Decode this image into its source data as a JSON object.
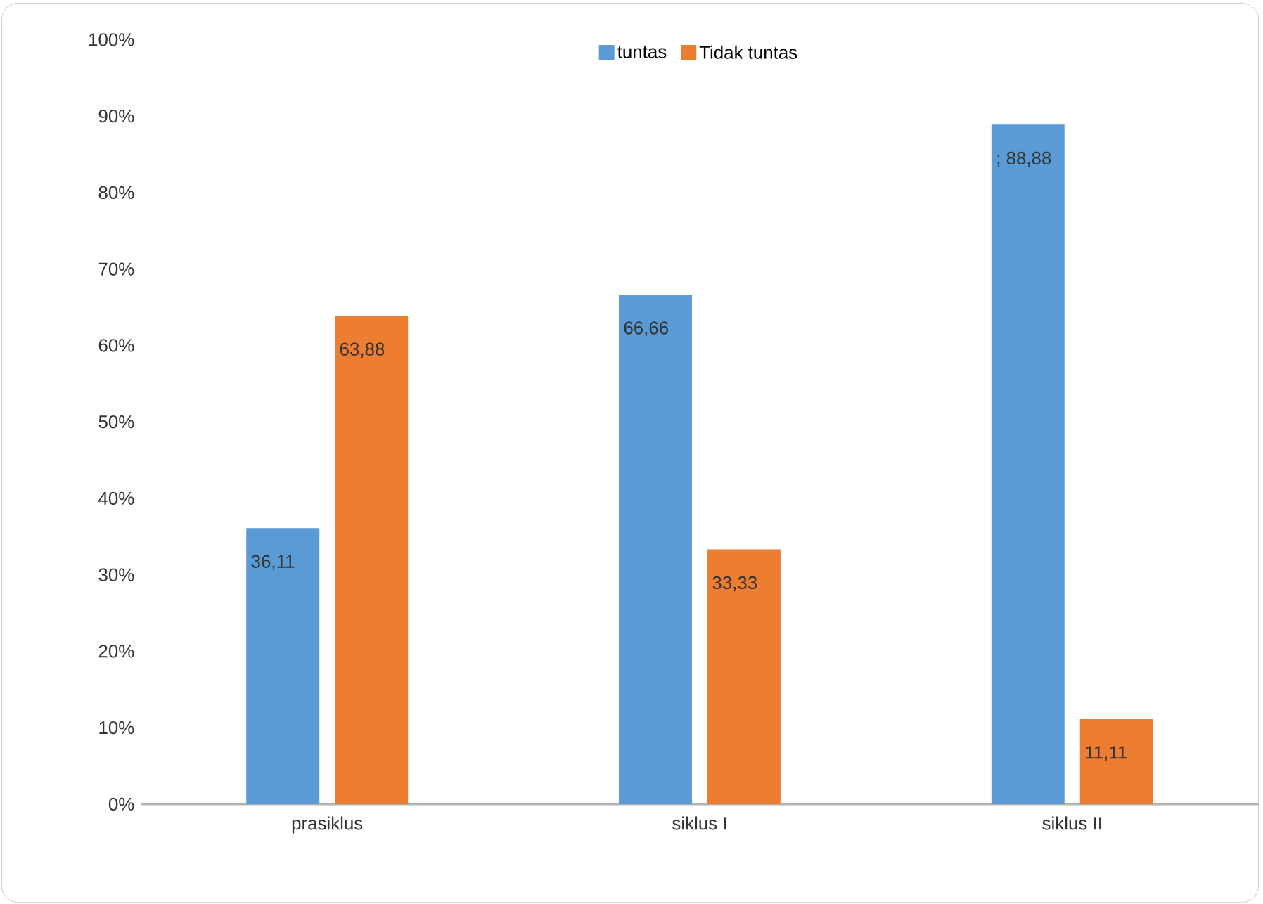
{
  "chart_data": {
    "type": "bar",
    "categories": [
      "prasiklus",
      "siklus I",
      "siklus II"
    ],
    "series": [
      {
        "name": "tuntas",
        "color": "#5b9bd5",
        "values": [
          36.11,
          66.66,
          88.88
        ],
        "value_labels": [
          "36,11",
          "66,66",
          "; 88,88"
        ]
      },
      {
        "name": "Tidak tuntas",
        "color": "#ed7d31",
        "values": [
          63.88,
          33.33,
          11.11
        ],
        "value_labels": [
          "63,88",
          "33,33",
          "11,11"
        ]
      }
    ],
    "ylim": [
      0,
      100
    ],
    "yticks": [
      {
        "value": 0,
        "label": "0%"
      },
      {
        "value": 10,
        "label": "10%"
      },
      {
        "value": 20,
        "label": "20%"
      },
      {
        "value": 30,
        "label": "30%"
      },
      {
        "value": 40,
        "label": "40%"
      },
      {
        "value": 50,
        "label": "50%"
      },
      {
        "value": 60,
        "label": "60%"
      },
      {
        "value": 70,
        "label": "70%"
      },
      {
        "value": 80,
        "label": "80%"
      },
      {
        "value": 90,
        "label": "90%"
      },
      {
        "value": 100,
        "label": "100%"
      }
    ],
    "legend": "top"
  }
}
